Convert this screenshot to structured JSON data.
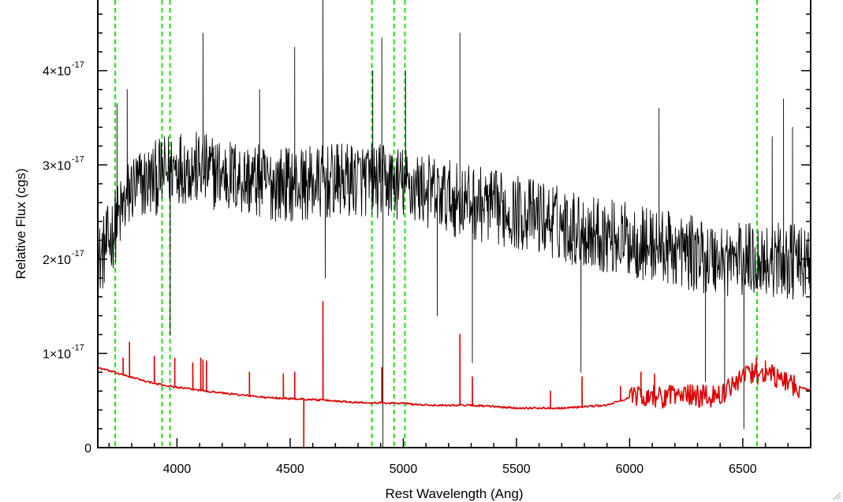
{
  "chart_data": {
    "type": "line",
    "title": "",
    "xlabel": "Rest Wavelength (Ang)",
    "ylabel": "Relative Flux (cgs)",
    "xlim": [
      3650,
      6800
    ],
    "ylim": [
      0,
      4.75e-17
    ],
    "x_ticks": [
      {
        "value": 4000,
        "label": "4000"
      },
      {
        "value": 4500,
        "label": "4500"
      },
      {
        "value": 5000,
        "label": "5000"
      },
      {
        "value": 5500,
        "label": "5500"
      },
      {
        "value": 6000,
        "label": "6000"
      },
      {
        "value": 6500,
        "label": "6500"
      }
    ],
    "y_ticks": [
      {
        "value": 0,
        "mantissa": "0",
        "exponent": ""
      },
      {
        "value": 1e-17,
        "mantissa": "1×10",
        "exponent": "-17"
      },
      {
        "value": 2e-17,
        "mantissa": "2×10",
        "exponent": "-17"
      },
      {
        "value": 3e-17,
        "mantissa": "3×10",
        "exponent": "-17"
      },
      {
        "value": 4e-17,
        "mantissa": "4×10",
        "exponent": "-17"
      }
    ],
    "vertical_lines": {
      "color": "#22dd22",
      "style": "dashed",
      "x": [
        3727,
        3934,
        3969,
        4861,
        4959,
        5007,
        6563
      ]
    },
    "series": [
      {
        "color": "#000000",
        "baseline": [
          [
            3650,
            1.95e-17
          ],
          [
            3700,
            2.2e-17
          ],
          [
            3800,
            2.75e-17
          ],
          [
            3900,
            2.85e-17
          ],
          [
            4000,
            3e-17
          ],
          [
            4200,
            2.9e-17
          ],
          [
            4400,
            2.8e-17
          ],
          [
            4600,
            2.8e-17
          ],
          [
            4800,
            2.85e-17
          ],
          [
            5000,
            2.8e-17
          ],
          [
            5200,
            2.65e-17
          ],
          [
            5400,
            2.55e-17
          ],
          [
            5600,
            2.45e-17
          ],
          [
            5800,
            2.3e-17
          ],
          [
            6000,
            2.2e-17
          ],
          [
            6200,
            2.1e-17
          ],
          [
            6400,
            2e-17
          ],
          [
            6600,
            2e-17
          ],
          [
            6800,
            1.95e-17
          ]
        ],
        "noise": 4e-18,
        "features": [
          [
            3735,
            3.65e-17
          ],
          [
            3780,
            3.8e-17
          ],
          [
            3970,
            1.2e-17
          ],
          [
            4115,
            4.4e-17
          ],
          [
            4365,
            3.8e-17
          ],
          [
            4520,
            4.25e-17
          ],
          [
            4645,
            4.8e-17
          ],
          [
            4655,
            1.8e-17
          ],
          [
            4865,
            4e-17
          ],
          [
            4905,
            4.35e-17
          ],
          [
            4910,
            0.0
          ],
          [
            5010,
            4e-17
          ],
          [
            5150,
            1.4e-17
          ],
          [
            5250,
            4.4e-17
          ],
          [
            5305,
            9e-18
          ],
          [
            5785,
            8e-18
          ],
          [
            6130,
            3.6e-17
          ],
          [
            6335,
            7e-18
          ],
          [
            6420,
            5e-18
          ],
          [
            6505,
            2e-18
          ],
          [
            6630,
            3.3e-17
          ],
          [
            6680,
            3.7e-17
          ],
          [
            6720,
            3.4e-17
          ]
        ]
      },
      {
        "color": "#dd0000",
        "baseline": [
          [
            3650,
            8.5e-18
          ],
          [
            3750,
            7.8e-18
          ],
          [
            3900,
            6.8e-18
          ],
          [
            4000,
            6.4e-18
          ],
          [
            4200,
            5.8e-18
          ],
          [
            4400,
            5.3e-18
          ],
          [
            4600,
            5.1e-18
          ],
          [
            4800,
            4.8e-18
          ],
          [
            5000,
            4.7e-18
          ],
          [
            5100,
            4.5e-18
          ],
          [
            5300,
            4.5e-18
          ],
          [
            5500,
            4.2e-18
          ],
          [
            5700,
            4.2e-18
          ],
          [
            5900,
            4.5e-18
          ],
          [
            6000,
            5.3e-18
          ],
          [
            6200,
            5.5e-18
          ],
          [
            6400,
            5.5e-18
          ],
          [
            6500,
            7.5e-18
          ],
          [
            6600,
            8e-18
          ],
          [
            6800,
            6e-18
          ]
        ],
        "noise": 1e-19,
        "features": [
          [
            3762,
            9.5e-18
          ],
          [
            3790,
            1.12e-17
          ],
          [
            3900,
            9.7e-18
          ],
          [
            3990,
            9.5e-18
          ],
          [
            4070,
            9e-18
          ],
          [
            4105,
            9.5e-18
          ],
          [
            4115,
            9.3e-18
          ],
          [
            4130,
            9.2e-18
          ],
          [
            4320,
            8e-18
          ],
          [
            4470,
            7.8e-18
          ],
          [
            4520,
            8e-18
          ],
          [
            4560,
            0.0
          ],
          [
            4645,
            1.55e-17
          ],
          [
            4905,
            8.5e-18
          ],
          [
            5250,
            1.2e-17
          ],
          [
            5305,
            7.5e-18
          ],
          [
            5650,
            6e-18
          ],
          [
            5790,
            7.5e-18
          ],
          [
            5960,
            6.5e-18
          ],
          [
            6050,
            8e-18
          ],
          [
            6110,
            7.8e-18
          ],
          [
            6560,
            9.5e-18
          ],
          [
            6600,
            9.2e-18
          ]
        ]
      }
    ]
  }
}
